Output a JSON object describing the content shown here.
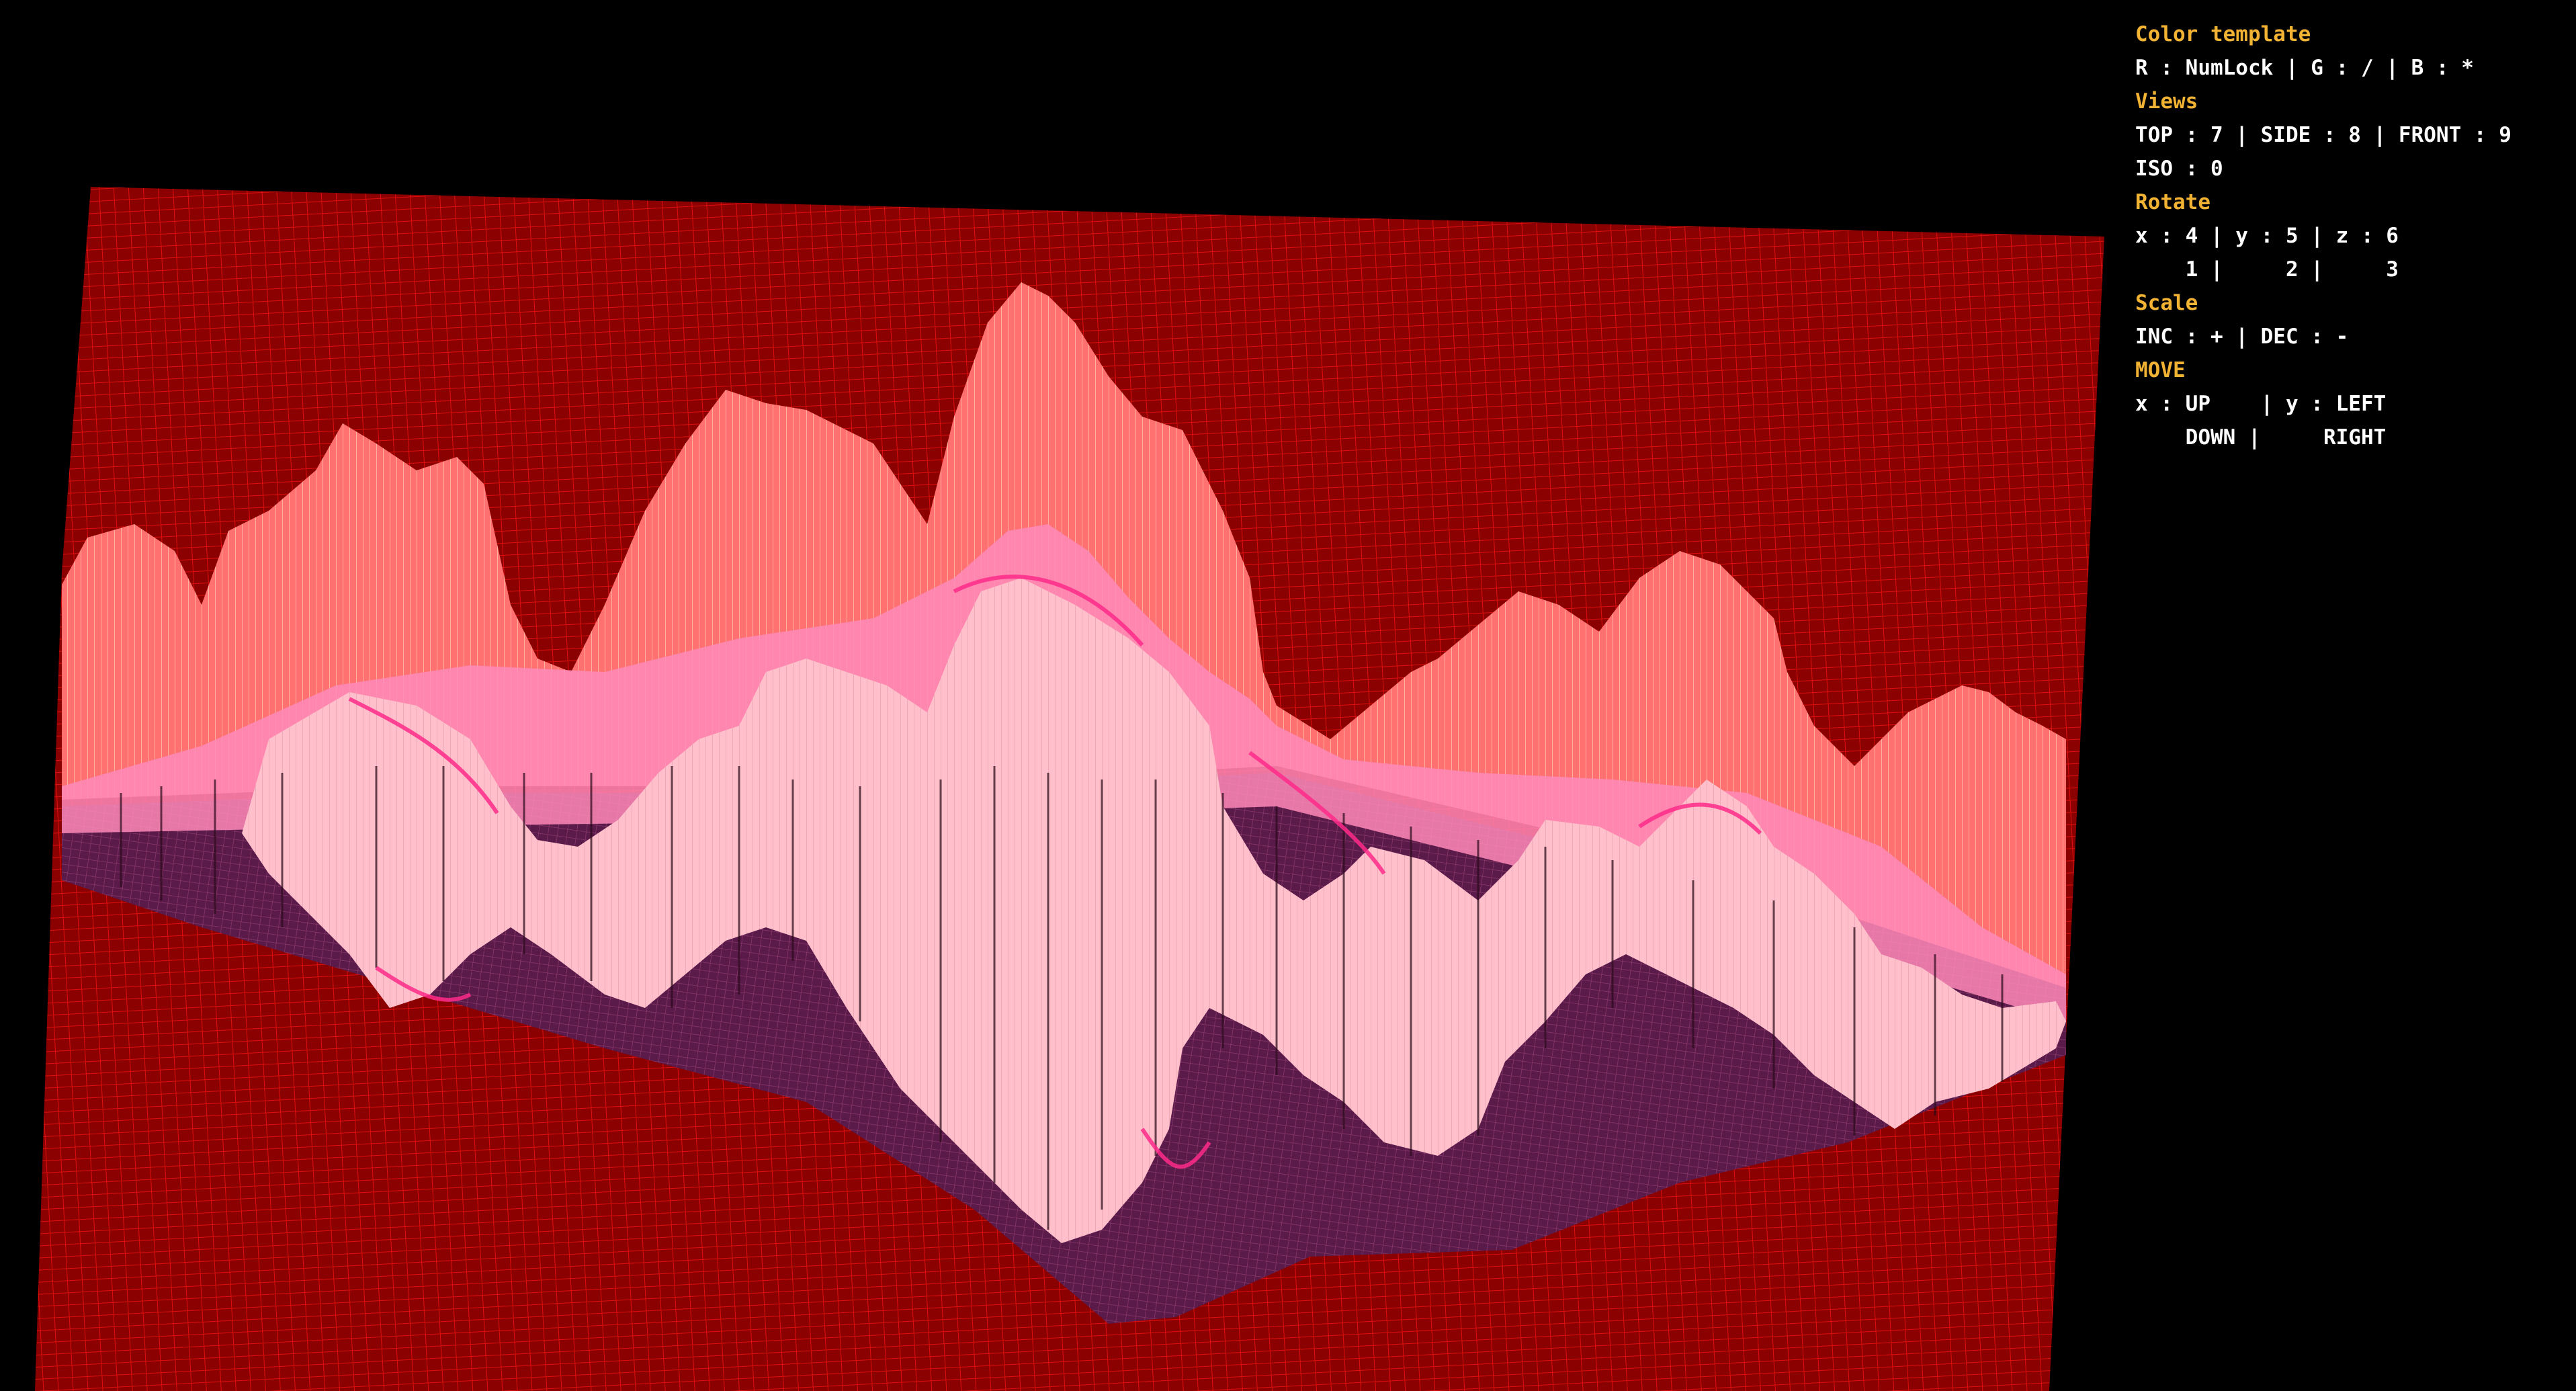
{
  "help": {
    "color_template": {
      "title": "Color template",
      "lines": [
        "R : NumLock | G : / | B : *"
      ]
    },
    "views": {
      "title": "Views",
      "lines": [
        "TOP : 7 | SIDE : 8 | FRONT : 9",
        "ISO : 0"
      ]
    },
    "rotate": {
      "title": "Rotate",
      "lines": [
        "x : 4 | y : 5 | z : 6",
        "    1 |     2 |     3"
      ]
    },
    "scale": {
      "title": "Scale",
      "lines": [
        "INC : + | DEC : -"
      ]
    },
    "move": {
      "title": "MOVE",
      "lines": [
        "x : UP    | y : LEFT",
        "    DOWN |     RIGHT"
      ]
    }
  },
  "colors": {
    "background": "#000000",
    "plane": "#8b0000",
    "grid": "#e01010",
    "low_shadow": "#5a1a4a",
    "mid": "#ff6a6a",
    "peak": "#ffc0cb",
    "accent": "#ff3399",
    "section_title": "#f2b233",
    "text": "#ffffff"
  }
}
